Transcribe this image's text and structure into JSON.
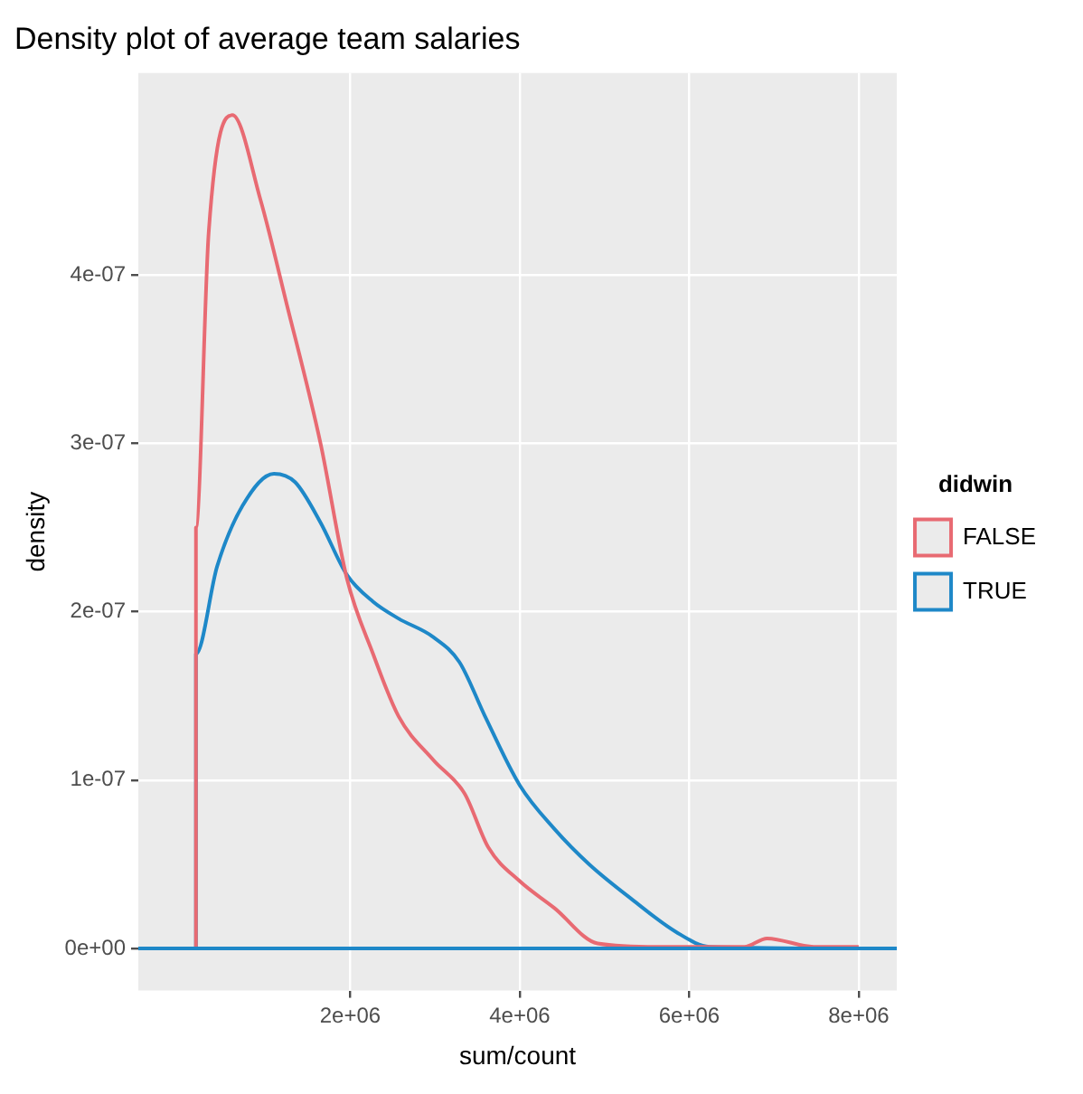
{
  "chart_data": {
    "type": "line",
    "title": "Density plot of average team salaries",
    "xlabel": "sum/count",
    "ylabel": "density",
    "legend_title": "didwin",
    "legend": "right",
    "grid": true,
    "marker": "none",
    "line_style": "solid",
    "xlim": [
      -500000,
      8450000
    ],
    "xticks": [
      {
        "value": 2000000,
        "label": "2e+06"
      },
      {
        "value": 4000000,
        "label": "4e+06"
      },
      {
        "value": 6000000,
        "label": "6e+06"
      },
      {
        "value": 8000000,
        "label": "8e+06"
      }
    ],
    "ylim": [
      -2.5e-08,
      5.2e-07
    ],
    "yticks": [
      {
        "value": 0,
        "label": "0e+00"
      },
      {
        "value": 1e-07,
        "label": "1e-07"
      },
      {
        "value": 2e-07,
        "label": "2e-07"
      },
      {
        "value": 3e-07,
        "label": "3e-07"
      },
      {
        "value": 4e-07,
        "label": "4e-07"
      }
    ],
    "series": [
      {
        "name": "FALSE",
        "color": "#e86a72",
        "x": [
          180000,
          180000,
          330000,
          610000,
          940000,
          1240000,
          1650000,
          1960000,
          2270000,
          2570000,
          2980000,
          3350000,
          3630000,
          4000000,
          4410000,
          4920000,
          5630000,
          6650000,
          6920000,
          7470000,
          8000000
        ],
        "values": [
          0,
          2.5e-07,
          4.25e-07,
          4.95e-07,
          4.45e-07,
          3.85e-07,
          3e-07,
          2.2e-07,
          1.75e-07,
          1.38e-07,
          1.12e-07,
          9.2e-08,
          6e-08,
          4e-08,
          2.4e-08,
          3e-09,
          1e-09,
          1e-09,
          6e-09,
          1e-09,
          1e-09
        ]
      },
      {
        "name": "TRUE",
        "color": "#1e88c8",
        "x": [
          180000,
          180000,
          430000,
          730000,
          1100000,
          1350000,
          1650000,
          1960000,
          2270000,
          2570000,
          2980000,
          3290000,
          3590000,
          4000000,
          4410000,
          4820000,
          5330000,
          5840000,
          6240000,
          8000000
        ],
        "values": [
          0,
          1.75e-07,
          2.27e-07,
          2.63e-07,
          2.82e-07,
          2.77e-07,
          2.53e-07,
          2.22e-07,
          2.06e-07,
          1.96e-07,
          1.85e-07,
          1.7e-07,
          1.38e-07,
          9.7e-08,
          7.1e-08,
          5e-08,
          2.9e-08,
          1e-08,
          1e-09,
          0
        ]
      }
    ],
    "ref_lines": [
      {
        "axis": "y",
        "value": 0,
        "color": "#1e88c8"
      }
    ]
  }
}
